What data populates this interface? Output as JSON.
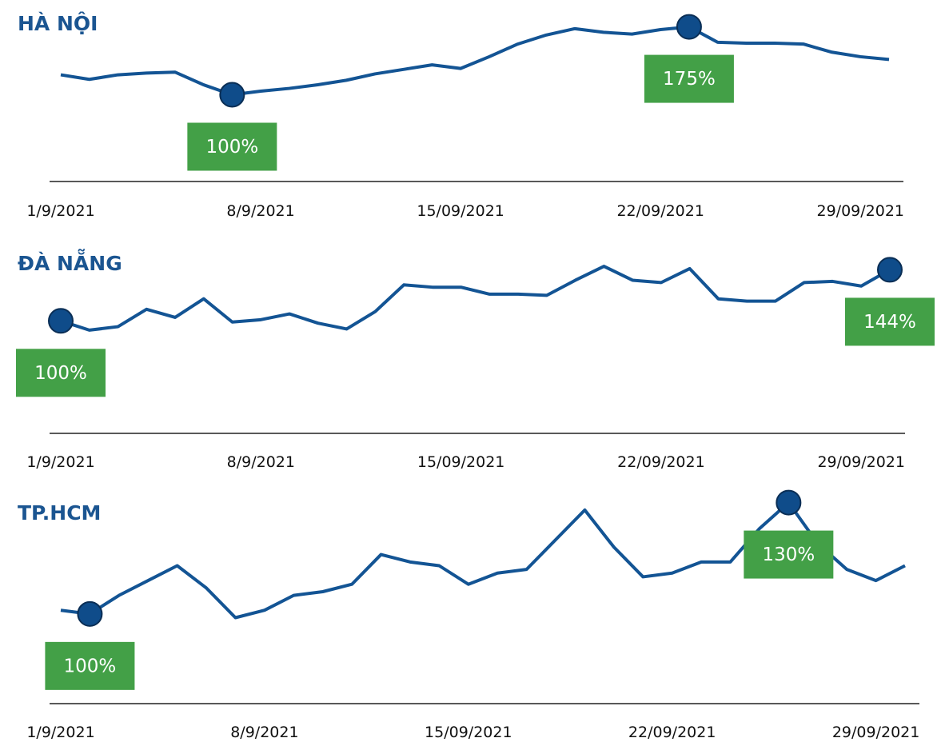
{
  "chart_data": [
    {
      "type": "line",
      "title": "HÀ NỘI",
      "color": "#135494",
      "categories": [
        "1/9/2021",
        null,
        null,
        null,
        null,
        null,
        null,
        "8/9/2021",
        null,
        null,
        null,
        null,
        null,
        null,
        "15/09/2021",
        null,
        null,
        null,
        null,
        null,
        null,
        "22/09/2021",
        null,
        null,
        null,
        null,
        null,
        null,
        "29/09/2021",
        null
      ],
      "values": [
        122,
        117,
        122,
        124,
        125,
        111,
        100,
        104,
        107,
        111,
        116,
        123,
        128,
        133,
        129,
        142,
        156,
        166,
        173,
        169,
        167,
        172,
        175,
        158,
        157,
        157,
        156,
        147,
        142,
        139
      ],
      "value_labels": [
        null,
        null,
        null,
        null,
        null,
        null,
        "100%",
        null,
        null,
        null,
        null,
        null,
        null,
        null,
        null,
        null,
        null,
        null,
        null,
        null,
        null,
        null,
        "175%",
        null,
        null,
        null,
        null,
        null,
        null,
        null
      ],
      "ylim": [
        28,
        187
      ]
    },
    {
      "type": "line",
      "title": "ĐÀ NẴNG",
      "color": "#135494",
      "categories": [
        "1/9/2021",
        null,
        null,
        null,
        null,
        null,
        null,
        "8/9/2021",
        null,
        null,
        null,
        null,
        null,
        null,
        "15/09/2021",
        null,
        null,
        null,
        null,
        null,
        null,
        "22/09/2021",
        null,
        null,
        null,
        null,
        null,
        null,
        "29/09/2021",
        null
      ],
      "values": [
        100,
        92,
        95,
        110,
        103,
        119,
        99,
        101,
        106,
        98,
        93,
        108,
        131,
        129,
        129,
        123,
        123,
        122,
        135,
        147,
        135,
        133,
        145,
        119,
        117,
        117,
        133,
        134,
        130,
        144
      ],
      "value_labels": [
        "100%",
        null,
        null,
        null,
        null,
        null,
        null,
        null,
        null,
        null,
        null,
        null,
        null,
        null,
        null,
        null,
        null,
        null,
        null,
        null,
        null,
        null,
        null,
        null,
        null,
        null,
        null,
        null,
        null,
        "144%"
      ],
      "ylim": [
        32,
        156
      ]
    },
    {
      "type": "line",
      "title": "TP.HCM",
      "color": "#135494",
      "categories": [
        "1/9/2021",
        null,
        null,
        null,
        null,
        null,
        null,
        "8/9/2021",
        null,
        null,
        null,
        null,
        null,
        null,
        "15/09/2021",
        null,
        null,
        null,
        null,
        null,
        null,
        "22/09/2021",
        null,
        null,
        null,
        null,
        null,
        null,
        "29/09/2021",
        null
      ],
      "values": [
        101,
        100,
        105,
        109,
        113,
        107,
        99,
        101,
        105,
        106,
        108,
        116,
        114,
        113,
        108,
        111,
        112,
        120,
        128,
        118,
        110,
        111,
        114,
        114,
        123,
        130,
        119,
        112,
        109,
        113
      ],
      "value_labels": [
        null,
        "100%",
        null,
        null,
        null,
        null,
        null,
        null,
        null,
        null,
        null,
        null,
        null,
        null,
        null,
        null,
        null,
        null,
        null,
        null,
        null,
        null,
        null,
        null,
        null,
        "130%",
        null,
        null,
        null,
        null
      ],
      "ylim": [
        78,
        134
      ]
    }
  ]
}
